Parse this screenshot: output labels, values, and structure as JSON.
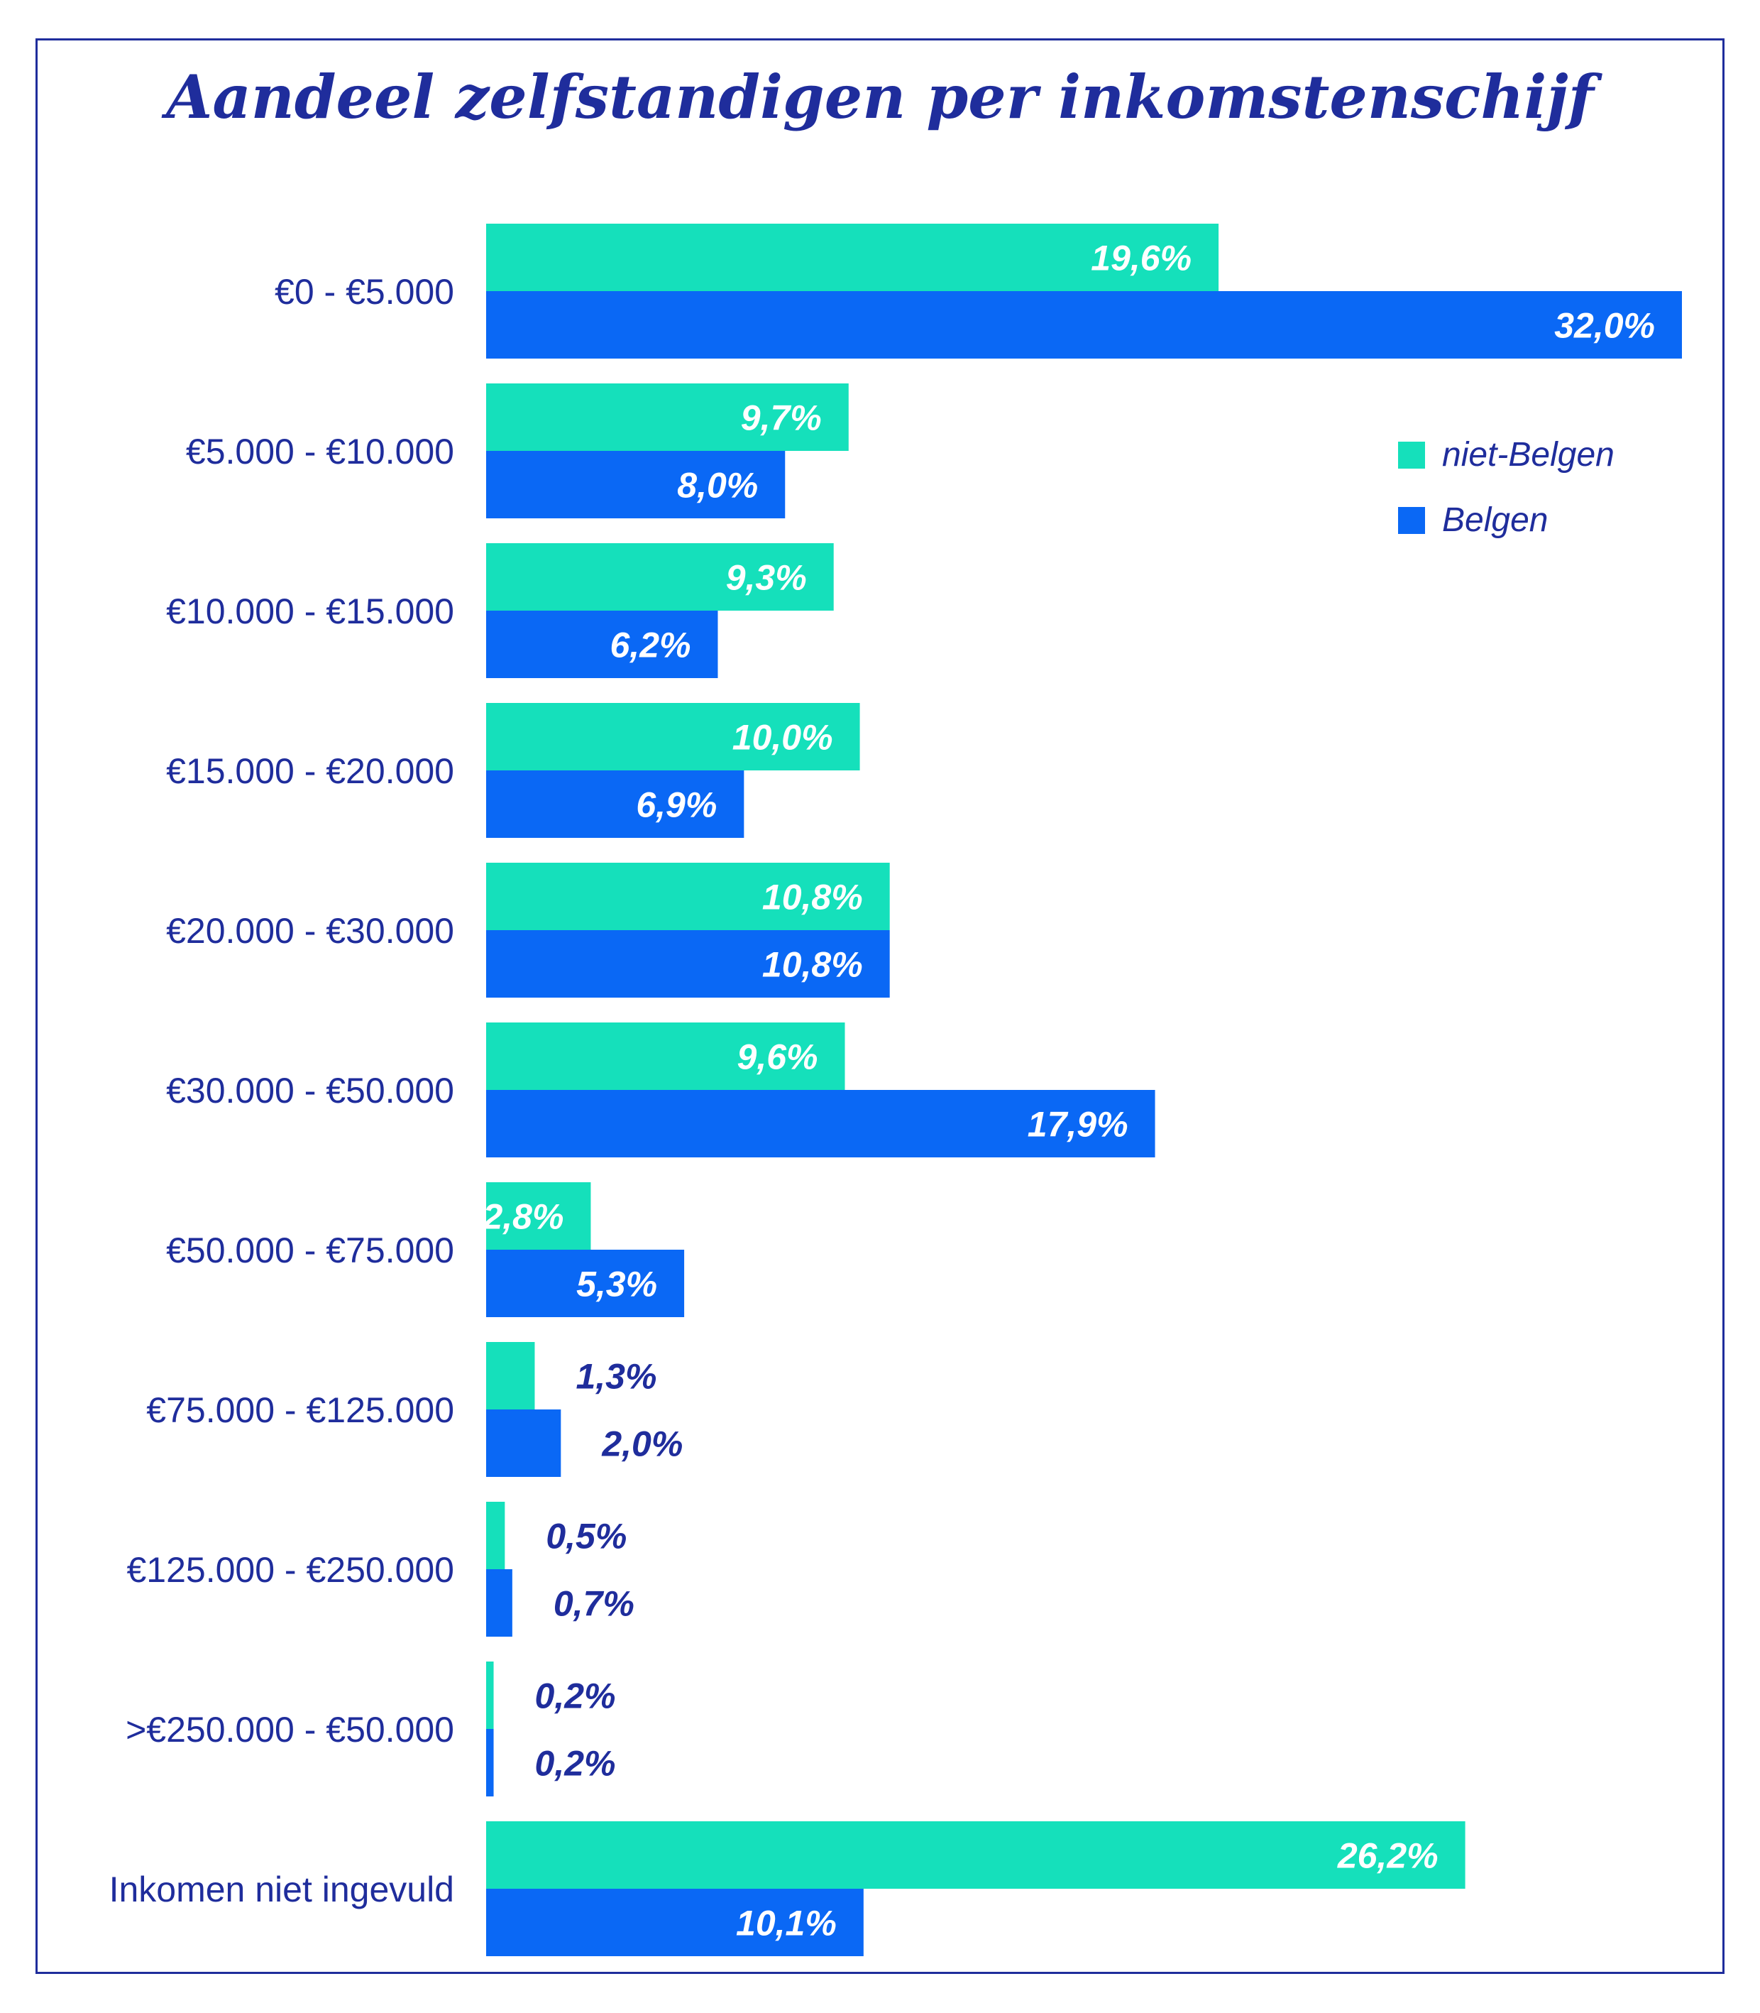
{
  "chart_data": {
    "type": "bar",
    "orientation": "horizontal",
    "title": "Aandeel zelfstandigen per inkomstenschijf",
    "categories": [
      "€0 - €5.000",
      "€5.000 - €10.000",
      "€10.000 - €15.000",
      "€15.000 - €20.000",
      "€20.000 - €30.000",
      "€30.000 - €50.000",
      "€50.000 - €75.000",
      "€75.000 - €125.000",
      "€125.000 - €250.000",
      ">€250.000 - €50.000",
      "Inkomen niet ingevuld"
    ],
    "series": [
      {
        "name": "niet-Belgen",
        "color": "#15e0bb",
        "values": [
          19.6,
          9.7,
          9.3,
          10.0,
          10.8,
          9.6,
          2.8,
          1.3,
          0.5,
          0.2,
          26.2
        ],
        "labels": [
          "19,6%",
          "9,7%",
          "9,3%",
          "10,0%",
          "10,8%",
          "9,6%",
          "2,8%",
          "1,3%",
          "0,5%",
          "0,2%",
          "26,2%"
        ]
      },
      {
        "name": "Belgen",
        "color": "#0a68f5",
        "values": [
          32.0,
          8.0,
          6.2,
          6.9,
          10.8,
          17.9,
          5.3,
          2.0,
          0.7,
          0.2,
          10.1
        ],
        "labels": [
          "32,0%",
          "8,0%",
          "6,2%",
          "6,9%",
          "10,8%",
          "17,9%",
          "5,3%",
          "2,0%",
          "0,7%",
          "0,2%",
          "10,1%"
        ]
      }
    ],
    "xlim": [
      0,
      32
    ],
    "grid": false,
    "legend": "top-right",
    "text_color": "#1f2d9c"
  }
}
